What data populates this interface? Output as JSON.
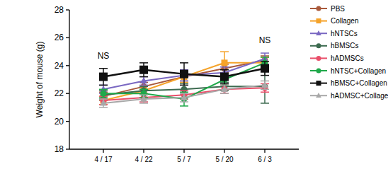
{
  "chart_data": {
    "type": "line",
    "y_label": "Weight of mouse (g)",
    "categories": [
      "4 / 17",
      "4 / 22",
      "5 / 7",
      "5 / 20",
      "6 / 3"
    ],
    "ylim": [
      18,
      28
    ],
    "yticks": [
      18,
      20,
      22,
      24,
      26,
      28
    ],
    "grid": false,
    "legend": "right",
    "annotations": [
      {
        "text": "NS",
        "category": "4 / 17"
      },
      {
        "text": "NS",
        "category": "6 / 3"
      }
    ],
    "series": [
      {
        "name": "PBS",
        "color": "#a9593b",
        "marker": "circle",
        "values": [
          21.8,
          22.5,
          23.2,
          23.8,
          24.4
        ],
        "errors": [
          0.3,
          0.3,
          0.3,
          0.3,
          0.3
        ]
      },
      {
        "name": "Collagen",
        "color": "#f5a32a",
        "marker": "square",
        "values": [
          21.5,
          22.2,
          23.2,
          24.2,
          24.2
        ],
        "errors": [
          0.3,
          0.3,
          0.4,
          0.8,
          0.4
        ]
      },
      {
        "name": "hNTSCs",
        "color": "#7a68c2",
        "marker": "triangle",
        "values": [
          22.3,
          22.9,
          23.3,
          23.5,
          24.5
        ],
        "errors": [
          0.3,
          0.3,
          0.4,
          0.4,
          0.4
        ]
      },
      {
        "name": "hBMSCs",
        "color": "#3d6b50",
        "marker": "circle",
        "values": [
          21.9,
          22.2,
          22.3,
          22.5,
          22.5
        ],
        "errors": [
          0.3,
          0.3,
          0.4,
          0.3,
          1.2
        ]
      },
      {
        "name": "hADMSCs",
        "color": "#e94f6a",
        "marker": "circle",
        "values": [
          21.5,
          21.7,
          21.9,
          22.3,
          22.4
        ],
        "errors": [
          0.3,
          0.3,
          0.3,
          0.3,
          0.3
        ]
      },
      {
        "name": "hNTSC+Collagen",
        "color": "#1fa84a",
        "marker": "circle",
        "values": [
          22.0,
          22.0,
          21.6,
          23.0,
          24.2
        ],
        "errors": [
          0.3,
          0.3,
          0.5,
          0.4,
          0.4
        ]
      },
      {
        "name": "hBMSC+Collagen",
        "color": "#111111",
        "marker": "square",
        "values": [
          23.2,
          23.7,
          23.4,
          23.2,
          23.8
        ],
        "errors": [
          0.6,
          0.5,
          0.8,
          0.5,
          0.5
        ]
      },
      {
        "name": "hADMSC+Collagen",
        "color": "#a8a8a8",
        "marker": "triangle",
        "values": [
          21.3,
          21.6,
          21.7,
          22.3,
          22.6
        ],
        "errors": [
          0.3,
          0.3,
          0.3,
          0.3,
          0.3
        ]
      }
    ]
  }
}
